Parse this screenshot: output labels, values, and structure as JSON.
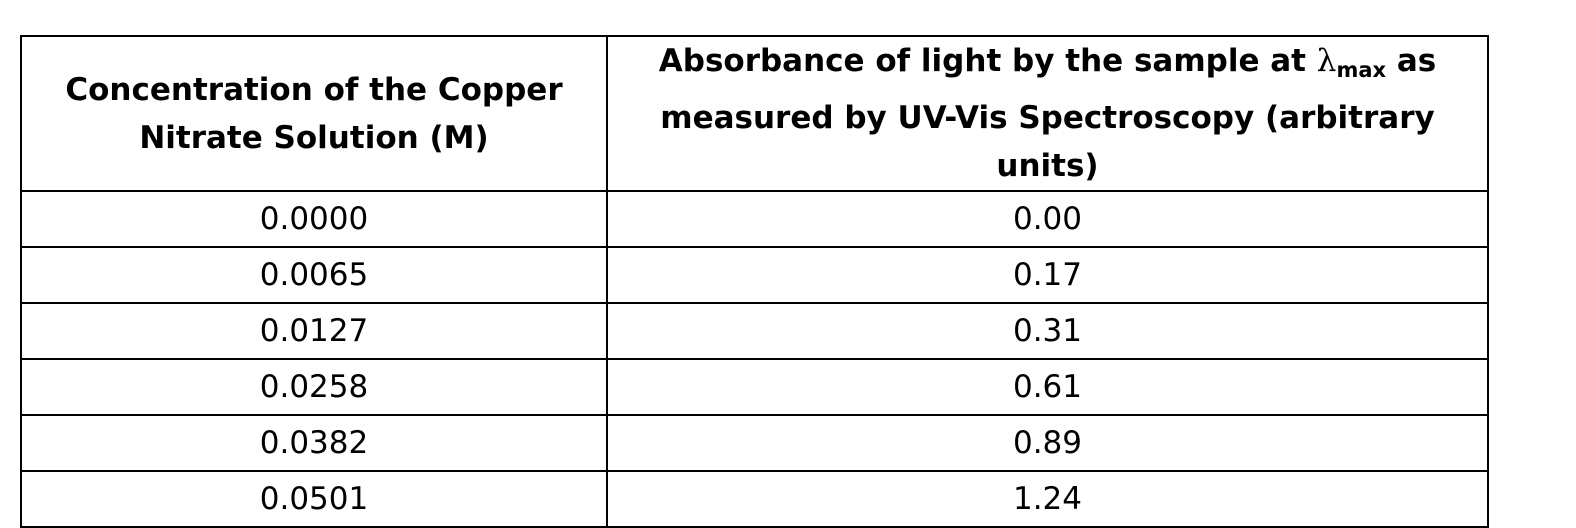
{
  "table": {
    "headers": {
      "col1": "Concentration of the Copper Nitrate Solution (M)",
      "col2_prefix": "Absorbance of light by the sample at ",
      "col2_symbol": "λ",
      "col2_subscript": "max",
      "col2_suffix": " as measured by UV-Vis Spectroscopy (arbitrary units)"
    },
    "rows": [
      {
        "concentration": "0.0000",
        "absorbance": "0.00"
      },
      {
        "concentration": "0.0065",
        "absorbance": "0.17"
      },
      {
        "concentration": "0.0127",
        "absorbance": "0.31"
      },
      {
        "concentration": "0.0258",
        "absorbance": "0.61"
      },
      {
        "concentration": "0.0382",
        "absorbance": "0.89"
      },
      {
        "concentration": "0.0501",
        "absorbance": "1.24"
      }
    ]
  }
}
